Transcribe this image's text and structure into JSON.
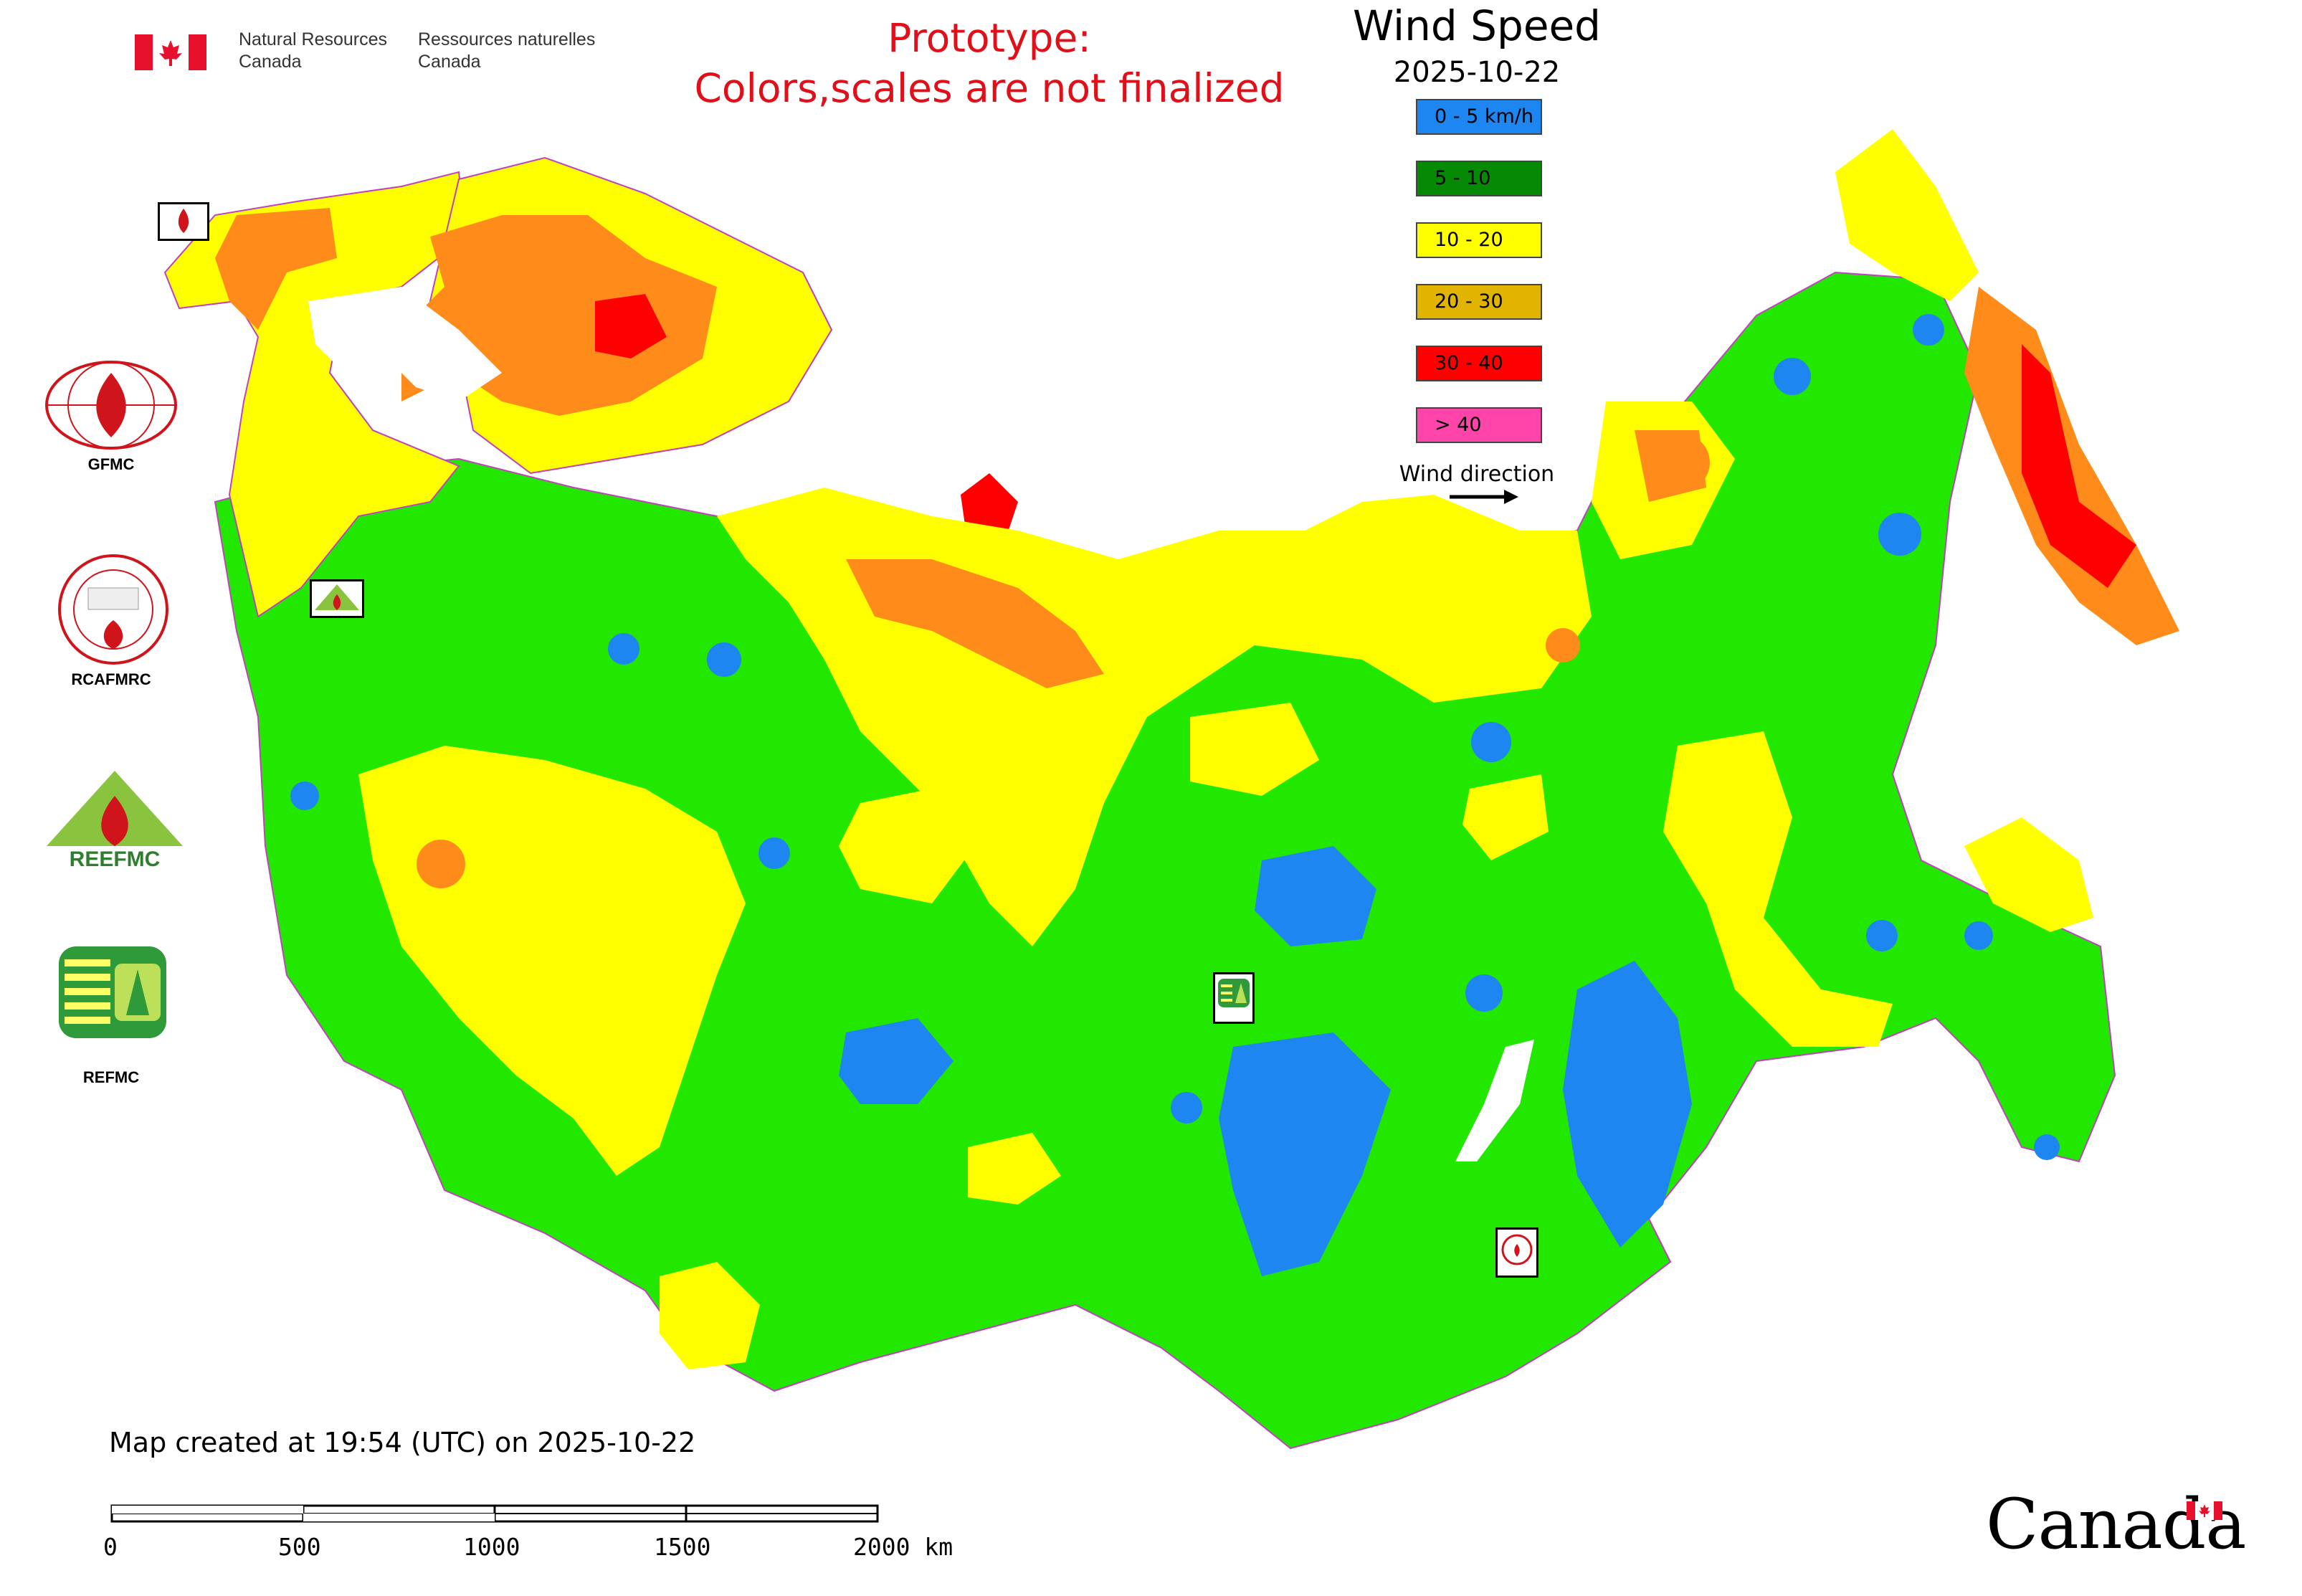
{
  "header": {
    "department_en_line1": "Natural Resources",
    "department_en_line2": "Canada",
    "department_fr_line1": "Ressources naturelles",
    "department_fr_line2": "Canada",
    "prototype_line1": "Prototype:",
    "prototype_line2": "Colors,scales are not finalized"
  },
  "legend": {
    "title": "Wind Speed",
    "date": "2025-10-22",
    "classes": [
      {
        "label": "0 - 5 km/h",
        "color": "#1e86f0"
      },
      {
        "label": "5 - 10",
        "color": "#068a06"
      },
      {
        "label": "10 - 20",
        "color": "#ffff00"
      },
      {
        "label": "20 - 30",
        "color": "#e0b400"
      },
      {
        "label": "30 - 40",
        "color": "#ff0000"
      },
      {
        "label": "> 40",
        "color": "#ff44aa"
      }
    ],
    "wind_direction_label": "Wind direction"
  },
  "organizations": [
    {
      "label": "GFMC"
    },
    {
      "label": "RCAFMRC"
    },
    {
      "label": "REEFMC"
    },
    {
      "label": "REFMC"
    }
  ],
  "map_colors": {
    "low": "#1e86f0",
    "green": "#22e800",
    "yellow": "#ffff00",
    "orange": "#ff8c1a",
    "red": "#ff0000",
    "pink": "#ff44aa",
    "border": "#c040c0"
  },
  "footer": {
    "created_text": "Map created at 19:54 (UTC) on 2025-10-22",
    "scale_labels": [
      "0",
      "500",
      "1000",
      "1500",
      "2000 km"
    ],
    "wordmark": "Canada"
  }
}
